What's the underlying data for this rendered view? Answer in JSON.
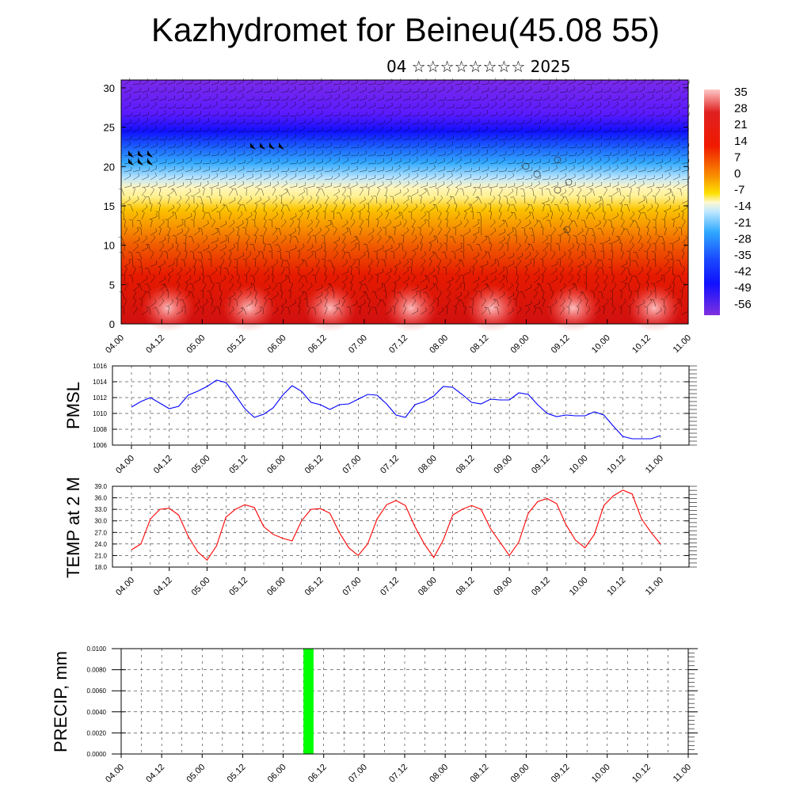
{
  "title": "Kazhydromet for Beineu(45.08 55)",
  "subtitle": "04 ☆☆☆☆☆☆☆☆ 2025",
  "colors": {
    "pmsl_line": "#0000ff",
    "temp_line": "#ff0000",
    "precip_bar": "#00ff00"
  },
  "chart_data": [
    {
      "type": "heatmap",
      "name": "cross-section",
      "x_ticks": [
        "04.00",
        "04.12",
        "05.00",
        "05.12",
        "06.00",
        "06.12",
        "07.00",
        "07.12",
        "08.00",
        "08.12",
        "09.00",
        "09.12",
        "10.00",
        "10.12",
        "11.00"
      ],
      "y_ticks": [
        0,
        5,
        10,
        15,
        20,
        25,
        30
      ],
      "ylim": [
        0,
        31
      ],
      "colorbar_labels": [
        "35",
        "28",
        "21",
        "14",
        "7",
        "0",
        "-7",
        "-14",
        "-21",
        "-28",
        "-35",
        "-42",
        "-49",
        "-56"
      ],
      "overlay": "wind barbs"
    },
    {
      "type": "line",
      "ylabel": "PMSL",
      "ylim": [
        1006,
        1016
      ],
      "y_ticks": [
        "1016",
        "1014",
        "1012",
        "1010",
        "1008",
        "1006"
      ],
      "x_ticks": [
        "04.00",
        "04.12",
        "05.00",
        "05.12",
        "06.00",
        "06.12",
        "07.00",
        "07.12",
        "08.00",
        "08.12",
        "09.00",
        "09.12",
        "10.00",
        "10.12",
        "11.00"
      ],
      "x_step_hours": 3,
      "values": [
        1010.8,
        1011.5,
        1012.0,
        1011.3,
        1010.6,
        1010.9,
        1012.3,
        1012.8,
        1013.4,
        1014.2,
        1013.9,
        1012.3,
        1010.6,
        1009.5,
        1009.9,
        1010.7,
        1012.3,
        1013.5,
        1012.8,
        1011.4,
        1011.1,
        1010.5,
        1011.1,
        1011.2,
        1011.8,
        1012.4,
        1012.3,
        1011.2,
        1009.8,
        1009.5,
        1011.1,
        1011.5,
        1012.2,
        1013.4,
        1013.3,
        1012.4,
        1011.4,
        1011.2,
        1011.8,
        1011.7,
        1011.7,
        1012.6,
        1012.4,
        1011.1,
        1010.0,
        1009.6,
        1009.8,
        1009.7,
        1009.7,
        1010.2,
        1009.8,
        1008.4,
        1007.1,
        1006.8,
        1006.8,
        1006.8,
        1007.2
      ]
    },
    {
      "type": "line",
      "ylabel": "TEMP at 2 M",
      "ylim": [
        18,
        39
      ],
      "y_ticks": [
        "39.0",
        "36.0",
        "33.0",
        "30.0",
        "27.0",
        "24.0",
        "21.0",
        "18.0"
      ],
      "x_ticks": [
        "04.00",
        "04.12",
        "05.00",
        "05.12",
        "06.00",
        "06.12",
        "07.00",
        "07.12",
        "08.00",
        "08.12",
        "09.00",
        "09.12",
        "10.00",
        "10.12",
        "11.00"
      ],
      "x_step_hours": 3,
      "values": [
        22.5,
        24.0,
        30.5,
        33.0,
        33.3,
        31.5,
        26.0,
        22.0,
        19.8,
        23.5,
        31.0,
        33.0,
        34.2,
        33.5,
        28.5,
        26.5,
        25.5,
        24.8,
        30.0,
        33.0,
        33.2,
        32.0,
        27.0,
        23.0,
        21.0,
        24.0,
        30.5,
        34.2,
        35.3,
        34.0,
        28.5,
        24.0,
        20.5,
        25.0,
        31.5,
        33.0,
        34.0,
        33.0,
        28.0,
        24.5,
        21.0,
        24.5,
        32.0,
        35.0,
        35.8,
        34.5,
        29.0,
        25.0,
        23.0,
        26.5,
        34.0,
        36.5,
        38.0,
        37.0,
        30.5,
        27.0,
        24.0
      ]
    },
    {
      "type": "bar",
      "ylabel": "PRECIP, mm",
      "ylim": [
        0,
        0.01
      ],
      "y_ticks": [
        "0.0100",
        "0.0080",
        "0.0060",
        "0.0040",
        "0.0020",
        "0.0000"
      ],
      "x_ticks": [
        "04.00",
        "04.12",
        "05.00",
        "05.12",
        "06.00",
        "06.12",
        "07.00",
        "07.12",
        "08.00",
        "08.12",
        "09.00",
        "09.12",
        "10.00",
        "10.12",
        "11.00"
      ],
      "bars": [
        {
          "hour": 54,
          "width_hours": 3,
          "value": 0.01
        }
      ]
    }
  ]
}
